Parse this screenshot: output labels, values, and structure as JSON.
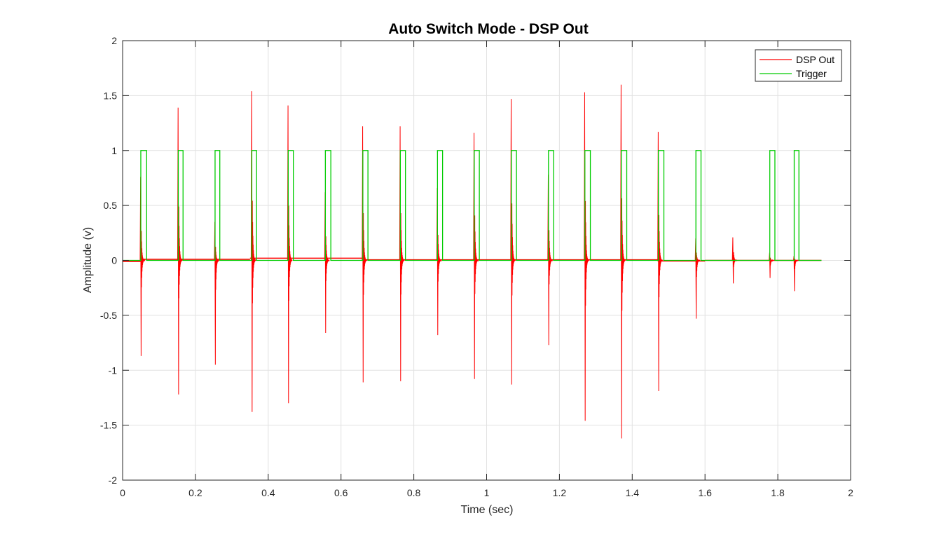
{
  "chart_data": {
    "type": "line",
    "title": "Auto Switch Mode - DSP Out",
    "xlabel": "Time (sec)",
    "ylabel": "Amplitude (v)",
    "xlim": [
      0,
      2
    ],
    "ylim": [
      -2,
      2
    ],
    "x_ticks": [
      "0",
      "0.2",
      "0.4",
      "0.6",
      "0.8",
      "1",
      "1.2",
      "1.4",
      "1.6",
      "1.8",
      "2"
    ],
    "y_ticks": [
      "-2",
      "-1.5",
      "-1",
      "-0.5",
      "0",
      "0.5",
      "1",
      "1.5",
      "2"
    ],
    "grid": true,
    "legend_position": "top-right",
    "series": [
      {
        "name": "DSP Out",
        "color": "#ff0000",
        "baseline_segments": [
          {
            "x": [
              0,
              0.05
            ],
            "y": -0.01
          },
          {
            "x": [
              0.05,
              0.35
            ],
            "y": 0.01
          },
          {
            "x": [
              0.35,
              0.66
            ],
            "y": 0.02
          },
          {
            "x": [
              0.66,
              1.47
            ],
            "y": 0.005
          },
          {
            "x": [
              1.47,
              1.6
            ],
            "y": -0.005
          },
          {
            "x": [
              1.6,
              1.92
            ],
            "y": 0
          }
        ],
        "spikes": [
          {
            "t": 0.05,
            "max": 0.76,
            "min": -0.87
          },
          {
            "t": 0.153,
            "max": 1.39,
            "min": -1.22
          },
          {
            "t": 0.254,
            "max": 0.35,
            "min": -0.95
          },
          {
            "t": 0.355,
            "max": 1.54,
            "min": -1.38
          },
          {
            "t": 0.455,
            "max": 1.41,
            "min": -1.3
          },
          {
            "t": 0.557,
            "max": 0.62,
            "min": -0.66
          },
          {
            "t": 0.66,
            "max": 1.22,
            "min": -1.11
          },
          {
            "t": 0.763,
            "max": 1.22,
            "min": -1.1
          },
          {
            "t": 0.865,
            "max": 0.66,
            "min": -0.68
          },
          {
            "t": 0.966,
            "max": 1.16,
            "min": -1.08
          },
          {
            "t": 1.068,
            "max": 1.47,
            "min": -1.13
          },
          {
            "t": 1.17,
            "max": 0.78,
            "min": -0.77
          },
          {
            "t": 1.27,
            "max": 1.53,
            "min": -1.46
          },
          {
            "t": 1.37,
            "max": 1.6,
            "min": -1.62
          },
          {
            "t": 1.472,
            "max": 1.17,
            "min": -1.19
          },
          {
            "t": 1.575,
            "max": 0.2,
            "min": -0.53
          },
          {
            "t": 1.677,
            "max": 0.21,
            "min": -0.21
          },
          {
            "t": 1.778,
            "max": 0.07,
            "min": -0.16
          },
          {
            "t": 1.845,
            "max": 0.04,
            "min": -0.28
          }
        ]
      },
      {
        "name": "Trigger",
        "color": "#00cc00",
        "low": 0,
        "high": 1,
        "end": 1.92,
        "pulses": [
          [
            0.05,
            0.066
          ],
          [
            0.153,
            0.166
          ],
          [
            0.254,
            0.267
          ],
          [
            0.355,
            0.368
          ],
          [
            0.455,
            0.469
          ],
          [
            0.557,
            0.572
          ],
          [
            0.66,
            0.674
          ],
          [
            0.763,
            0.777
          ],
          [
            0.865,
            0.879
          ],
          [
            0.966,
            0.98
          ],
          [
            1.068,
            1.082
          ],
          [
            1.17,
            1.184
          ],
          [
            1.27,
            1.285
          ],
          [
            1.37,
            1.385
          ],
          [
            1.472,
            1.487
          ],
          [
            1.575,
            1.589
          ],
          [
            1.778,
            1.792
          ],
          [
            1.845,
            1.858
          ]
        ]
      }
    ]
  }
}
